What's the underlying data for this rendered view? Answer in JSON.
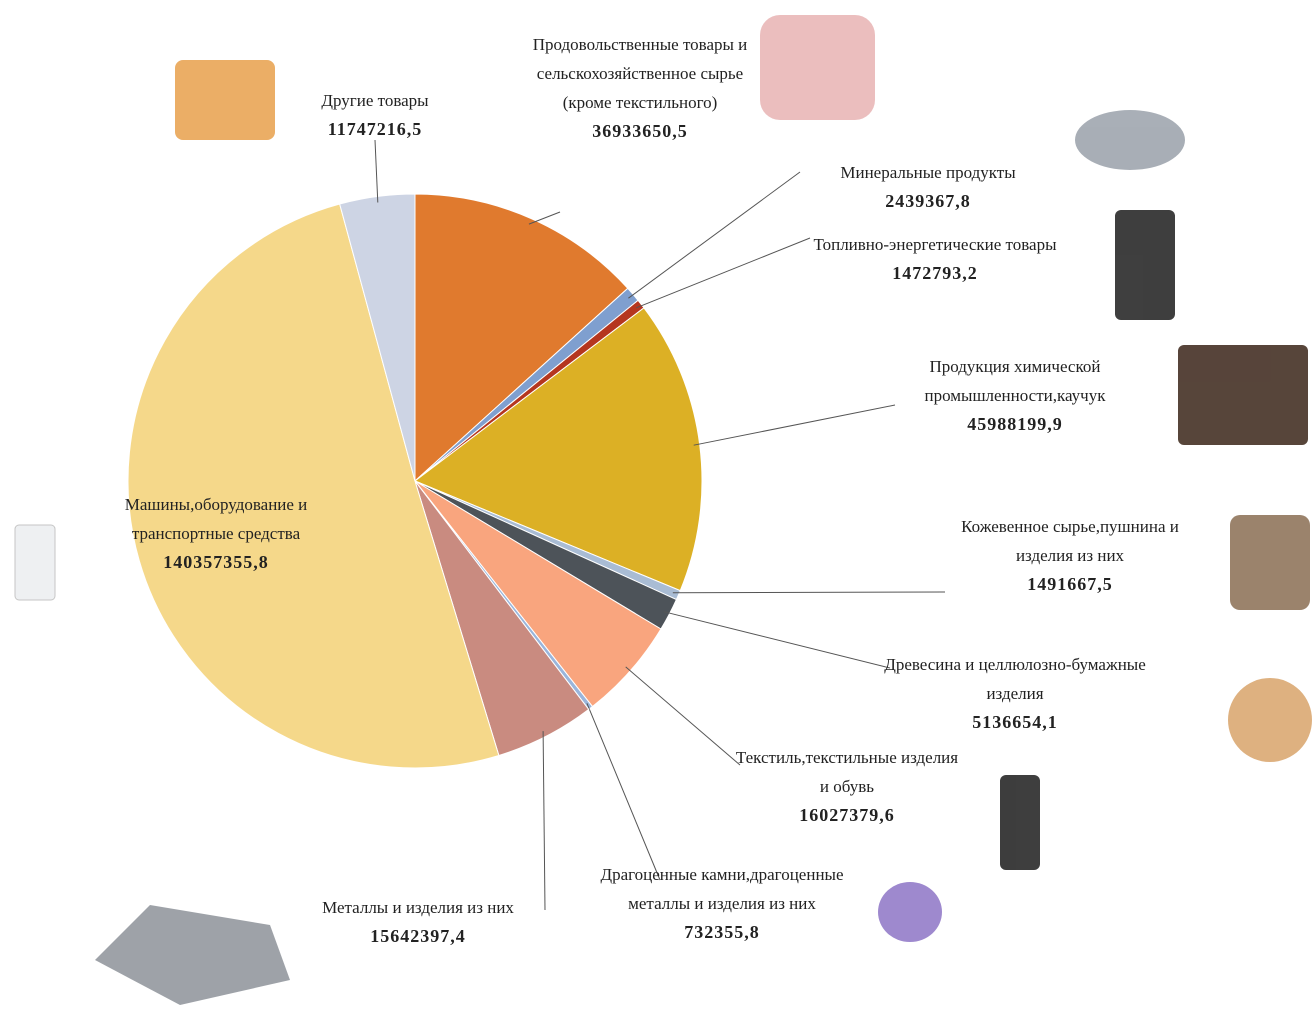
{
  "chart_data": {
    "type": "pie",
    "categories": [
      "Продовольственные товары и сельскохозяйственное сырье (кроме текстильного)",
      "Минеральные продукты",
      "Топливно-энергетические товары",
      "Продукция химической промышленности,каучук",
      "Кожевенное сырье,пушнина и изделия из них",
      "Древесина и целлюлозно-бумажные изделия",
      "Текстиль,текстильные изделия и обувь",
      "Драгоценные камни,драгоценные металлы и изделия из них",
      "Металлы и изделия из них",
      "Машины,оборудование и транспортные средства",
      "Другие товары"
    ],
    "values": [
      36933650.5,
      2439367.8,
      1472793.2,
      45988199.9,
      1491667.5,
      5136654.1,
      16027379.6,
      732355.8,
      15642397.4,
      140357355.8,
      11747216.5
    ],
    "value_labels": [
      "36933650,5",
      "2439367,8",
      "1472793,2",
      "45988199,9",
      "1491667,5",
      "5136654,1",
      "16027379,6",
      "732355,8",
      "15642397,4",
      "140357355,8",
      "11747216,5"
    ],
    "colors": [
      "#e07a2e",
      "#7f9fcf",
      "#b5361f",
      "#dcb025",
      "#a9bcd4",
      "#4d5359",
      "#f9a57e",
      "#9ab5db",
      "#c98b80",
      "#f5d88a",
      "#cdd4e4"
    ]
  }
}
